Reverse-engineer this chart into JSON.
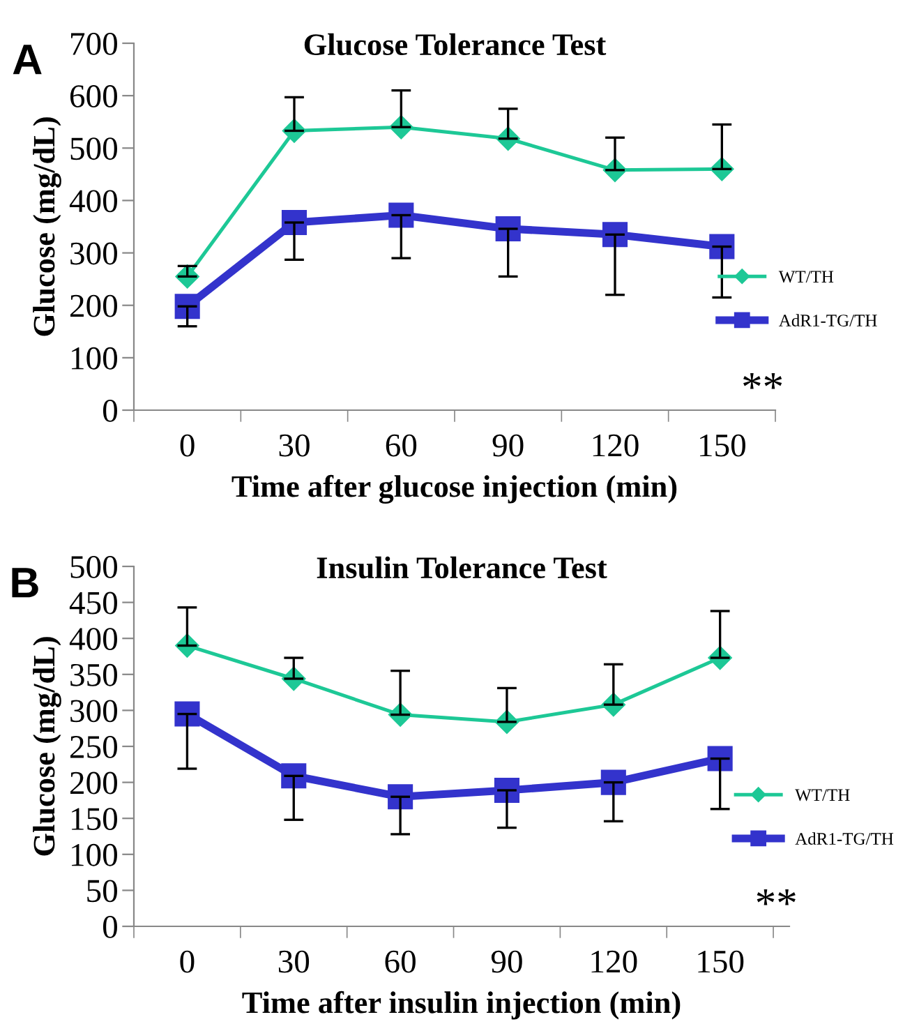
{
  "chart_data": [
    {
      "type": "line",
      "title": "Glucose Tolerance Test",
      "xlabel": "Time after glucose injection (min)",
      "ylabel": "Glucose (mg/dL)",
      "categories": [
        "0",
        "30",
        "60",
        "90",
        "120",
        "150"
      ],
      "series": [
        {
          "name": "WT/TH",
          "color": "#1dc896",
          "marker": "diamond",
          "values": [
            255,
            533,
            540,
            518,
            458,
            460
          ],
          "errors": [
            [
              255,
              275
            ],
            [
              533,
              597
            ],
            [
              540,
              610
            ],
            [
              518,
              575
            ],
            [
              458,
              520
            ],
            [
              460,
              545
            ]
          ]
        },
        {
          "name": "AdR1-TG/TH",
          "color": "#3333cc",
          "marker": "square",
          "values": [
            198,
            358,
            372,
            346,
            335,
            312
          ],
          "errors": [
            [
              160,
              198
            ],
            [
              287,
              358
            ],
            [
              290,
              372
            ],
            [
              255,
              346
            ],
            [
              220,
              335
            ],
            [
              215,
              312
            ]
          ]
        }
      ],
      "ylim": [
        0,
        700
      ],
      "yticks": [
        0,
        100,
        200,
        300,
        400,
        500,
        600,
        700
      ],
      "grid": false,
      "legend": "right",
      "annotations": [
        "A",
        "**"
      ]
    },
    {
      "type": "line",
      "title": "Insulin Tolerance Test",
      "xlabel": "Time after insulin injection (min)",
      "ylabel": "Glucose (mg/dL)",
      "categories": [
        "0",
        "30",
        "60",
        "90",
        "120",
        "150"
      ],
      "series": [
        {
          "name": "WT/TH",
          "color": "#1dc896",
          "marker": "diamond",
          "values": [
            390,
            344,
            294,
            284,
            308,
            373
          ],
          "errors": [
            [
              390,
              443
            ],
            [
              344,
              373
            ],
            [
              294,
              355
            ],
            [
              284,
              331
            ],
            [
              308,
              364
            ],
            [
              373,
              438
            ]
          ]
        },
        {
          "name": "AdR1-TG/TH",
          "color": "#3333cc",
          "marker": "square",
          "values": [
            295,
            209,
            180,
            189,
            200,
            233
          ],
          "errors": [
            [
              219,
              295
            ],
            [
              148,
              209
            ],
            [
              128,
              180
            ],
            [
              137,
              189
            ],
            [
              146,
              200
            ],
            [
              163,
              233
            ]
          ]
        }
      ],
      "ylim": [
        0,
        500
      ],
      "yticks": [
        0,
        50,
        100,
        150,
        200,
        250,
        300,
        350,
        400,
        450,
        500
      ],
      "grid": false,
      "legend": "right",
      "annotations": [
        "B",
        "**"
      ]
    }
  ]
}
